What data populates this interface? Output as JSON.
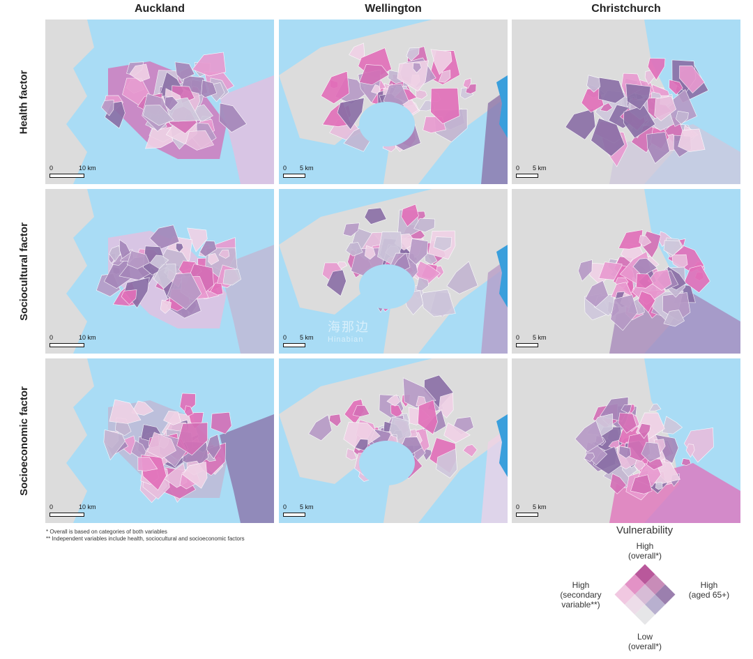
{
  "columns": [
    "Auckland",
    "Wellington",
    "Christchurch"
  ],
  "rows": [
    "Health factor",
    "Sociocultural factor",
    "Socioeconomic factor"
  ],
  "scales": [
    "10 km",
    "5 km",
    "5 km"
  ],
  "scale_zero": "0",
  "notes": [
    "*  Overall is based on categories of both variables",
    "** Independent variables include health, sociocultural and socioeconomic factors"
  ],
  "watermark": {
    "cn": "海那边",
    "en": "Hinabian"
  },
  "legend": {
    "title": "Vulnerability",
    "top_line1": "High",
    "top_line2": "(overall*)",
    "left_line1": "High",
    "left_line2": "(secondary",
    "left_line3": "variable**)",
    "right_line1": "High",
    "right_line2": "(aged 65+)",
    "bottom_line1": "Low",
    "bottom_line2": "(overall*)",
    "cells": [
      [
        "#b9589b",
        "#c88cb8",
        "#9b7fae"
      ],
      [
        "#e392c6",
        "#d7bcd6",
        "#b8b0cf"
      ],
      [
        "#f1c8e1",
        "#eddde9",
        "#e6e6e8"
      ]
    ]
  },
  "colors": {
    "water": "#a9dcf5",
    "land": "#dcdcdc",
    "lake": "#3a9fdc",
    "palette": [
      "#e99ad0",
      "#d46fb6",
      "#e8bedd",
      "#c3b6d2",
      "#8a6fa6",
      "#b79ac6",
      "#f0d2e6",
      "#cfc8dc",
      "#a586b9",
      "#e26fb9"
    ]
  }
}
